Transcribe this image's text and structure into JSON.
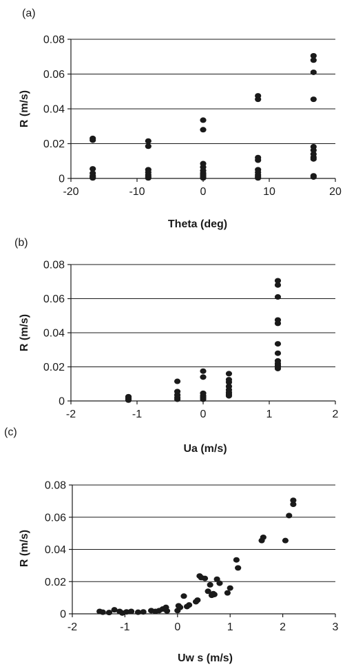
{
  "colors": {
    "marker": "#1a1a1a",
    "grid": "#1a1a1a",
    "background": "#ffffff"
  },
  "chart_data": [
    {
      "panel_label": "(a)",
      "type": "scatter",
      "xlabel": "Theta (deg)",
      "ylabel": "R (m/s)",
      "xlim": [
        -20,
        20
      ],
      "ylim": [
        0,
        0.08
      ],
      "xticks": [
        -20,
        -10,
        0,
        10,
        20
      ],
      "yticks": [
        0,
        0.02,
        0.04,
        0.06,
        0.08
      ],
      "x_tick_labels": [
        "-20",
        "-10",
        "0",
        "10",
        "20"
      ],
      "y_tick_labels": [
        "0",
        "0.02",
        "0.04",
        "0.06",
        "0.08"
      ],
      "grid": "horizontal",
      "series": [
        {
          "x": [
            -16.7,
            -16.7,
            -16.7,
            -16.7,
            -16.7,
            -16.7,
            -16.7,
            -8.3,
            -8.3,
            -8.3,
            -8.3,
            -8.3,
            -8.3,
            -8.3,
            0,
            0,
            0,
            0,
            0,
            0,
            0,
            0,
            0,
            8.3,
            8.3,
            8.3,
            8.3,
            8.3,
            8.3,
            8.3,
            8.3,
            8.3,
            16.7,
            16.7,
            16.7,
            16.7,
            16.7,
            16.7,
            16.7,
            16.7,
            16.7,
            16.7,
            16.7
          ],
          "y": [
            0.023,
            0.022,
            0.0055,
            0.003,
            0.0015,
            0.0008,
            0.0003,
            0.0215,
            0.0185,
            0.005,
            0.0035,
            0.002,
            0.001,
            0.0003,
            0.0335,
            0.028,
            0.0085,
            0.0065,
            0.0045,
            0.003,
            0.002,
            0.001,
            0.0003,
            0.0475,
            0.0455,
            0.012,
            0.0105,
            0.005,
            0.0035,
            0.002,
            0.001,
            0.0003,
            0.0705,
            0.068,
            0.061,
            0.0455,
            0.0182,
            0.0162,
            0.014,
            0.0122,
            0.0112,
            0.0015,
            0.0008
          ]
        }
      ]
    },
    {
      "panel_label": "(b)",
      "type": "scatter",
      "xlabel": "Ua (m/s)",
      "ylabel": "R (m/s)",
      "xlim": [
        -2,
        2
      ],
      "ylim": [
        0,
        0.08
      ],
      "xticks": [
        -2,
        -1,
        0,
        1,
        2
      ],
      "yticks": [
        0,
        0.02,
        0.04,
        0.06,
        0.08
      ],
      "x_tick_labels": [
        "-2",
        "-1",
        "0",
        "1",
        "2"
      ],
      "y_tick_labels": [
        "0",
        "0.02",
        "0.04",
        "0.06",
        "0.08"
      ],
      "grid": "horizontal",
      "series": [
        {
          "x": [
            -1.13,
            -1.13,
            -1.13,
            -1.13,
            -1.13,
            -0.39,
            -0.39,
            -0.39,
            -0.39,
            -0.39,
            0,
            0,
            0,
            0,
            0,
            0,
            0.39,
            0.39,
            0.39,
            0.39,
            0.39,
            0.39,
            0.39,
            0.39,
            1.13,
            1.13,
            1.13,
            1.13,
            1.13,
            1.13,
            1.13,
            1.13,
            1.13,
            1.13,
            1.13,
            1.13,
            1.13
          ],
          "y": [
            0.0025,
            0.002,
            0.0015,
            0.001,
            0.0005,
            0.0115,
            0.0055,
            0.0035,
            0.002,
            0.001,
            0.0175,
            0.014,
            0.0045,
            0.003,
            0.002,
            0.001,
            0.016,
            0.0125,
            0.011,
            0.0085,
            0.0065,
            0.005,
            0.004,
            0.003,
            0.0705,
            0.068,
            0.061,
            0.0475,
            0.0455,
            0.0335,
            0.028,
            0.0235,
            0.022,
            0.021,
            0.0205,
            0.02,
            0.019
          ]
        }
      ]
    },
    {
      "panel_label": "(c)",
      "type": "scatter",
      "xlabel": "Uw s (m/s)",
      "ylabel": "R (m/s)",
      "xlim": [
        -2,
        3
      ],
      "ylim": [
        0,
        0.08
      ],
      "xticks": [
        -2,
        -1,
        0,
        1,
        2,
        3
      ],
      "yticks": [
        0,
        0.02,
        0.04,
        0.06,
        0.08
      ],
      "x_tick_labels": [
        "-2",
        "-1",
        "0",
        "1",
        "2",
        "3"
      ],
      "y_tick_labels": [
        "0",
        "0.02",
        "0.04",
        "0.06",
        "0.08"
      ],
      "grid": "horizontal",
      "series": [
        {
          "x": [
            -1.48,
            -1.42,
            -1.3,
            -1.2,
            -1.1,
            -1.05,
            -0.97,
            -0.88,
            -0.75,
            -0.65,
            -0.5,
            -0.42,
            -0.35,
            -0.28,
            -0.22,
            -0.2,
            0,
            0.02,
            0.05,
            0.12,
            0.18,
            0.22,
            0.35,
            0.38,
            0.42,
            0.45,
            0.52,
            0.58,
            0.62,
            0.65,
            0.68,
            0.7,
            0.75,
            0.8,
            0.95,
            1.0,
            1.12,
            1.15,
            1.6,
            1.63,
            2.05,
            2.12,
            2.2,
            2.2
          ],
          "y": [
            0.0015,
            0.001,
            0.0008,
            0.0025,
            0.0015,
            0.0005,
            0.0012,
            0.0015,
            0.001,
            0.0012,
            0.002,
            0.0015,
            0.002,
            0.003,
            0.004,
            0.0018,
            0.002,
            0.005,
            0.004,
            0.011,
            0.0045,
            0.0055,
            0.0075,
            0.0085,
            0.0235,
            0.0225,
            0.022,
            0.014,
            0.018,
            0.0115,
            0.0125,
            0.012,
            0.0215,
            0.019,
            0.013,
            0.016,
            0.0335,
            0.0285,
            0.0455,
            0.0475,
            0.0455,
            0.061,
            0.068,
            0.0705
          ]
        }
      ]
    }
  ]
}
